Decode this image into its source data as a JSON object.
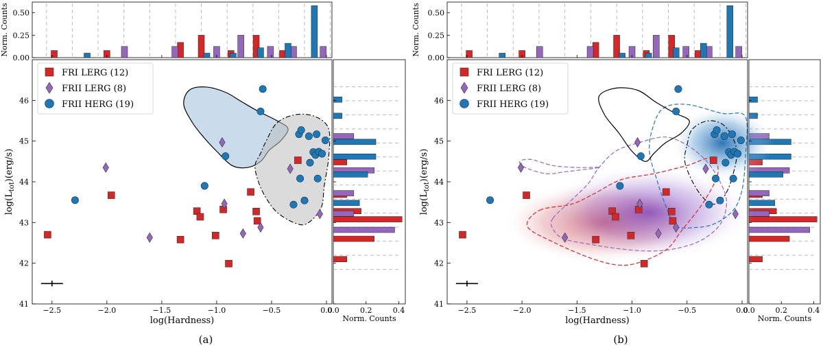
{
  "chart_data": [
    {
      "type": "scatter",
      "caption": "(a)",
      "xlabel": "log(Hardness)",
      "ylabel": "log(L_tot)(erg/s)",
      "ylabel_main": "log(L",
      "ylabel_sub": "tot",
      "ylabel_tail": ")(erg/s)",
      "xlim": [
        -2.68,
        0.05
      ],
      "ylim": [
        41,
        47
      ],
      "xticks": [
        -2.5,
        -2.0,
        -1.5,
        -1.0,
        -0.5,
        0.0
      ],
      "xtick_labels": [
        "−2.5",
        "−2.0",
        "−1.5",
        "−1.0",
        "−0.5",
        "0.0"
      ],
      "yticks": [
        41,
        42,
        43,
        44,
        45,
        46
      ],
      "ytick_labels": [
        "41",
        "42",
        "43",
        "44",
        "45",
        "46"
      ],
      "top_ylabel": "Norm. Counts",
      "top_ylim": [
        0,
        0.62
      ],
      "top_yticks": [
        0.0,
        0.25,
        0.5
      ],
      "top_ytick_labels": [
        "0.00",
        "0.25",
        "0.50"
      ],
      "right_xlabel": "Norm. Counts",
      "right_xlim": [
        0,
        0.44
      ],
      "right_xticks": [
        0.0,
        0.2,
        0.4
      ],
      "right_xtick_labels": [
        "0.0",
        "0.2",
        "0.4"
      ],
      "legend_position": "top-left",
      "error_bar": {
        "x": -2.5,
        "y": 41.5,
        "xerr": 0.1,
        "yerr": 0.07
      },
      "contours": "outline",
      "series": [
        {
          "name": "FRI LERG",
          "label": "FRI LERG (12)",
          "marker": "square",
          "color": "#d62728",
          "x": [
            -2.54,
            -1.96,
            -1.33,
            -1.18,
            -1.15,
            -1.01,
            -0.94,
            -0.89,
            -0.69,
            -0.64,
            -0.63,
            -0.26
          ],
          "y": [
            42.7,
            43.67,
            42.58,
            43.28,
            43.14,
            42.68,
            43.32,
            41.99,
            43.75,
            43.27,
            43.04,
            44.53
          ]
        },
        {
          "name": "FRII LERG",
          "label": "FRII LERG (8)",
          "marker": "diamond",
          "color": "#9467bd",
          "x": [
            -2.01,
            -1.61,
            -0.95,
            -0.93,
            -0.76,
            -0.6,
            -0.33,
            -0.06
          ],
          "y": [
            44.35,
            42.63,
            44.97,
            43.46,
            42.73,
            42.88,
            44.32,
            43.21
          ]
        },
        {
          "name": "FRII HERG",
          "label": "FRII HERG (19)",
          "marker": "circle",
          "color": "#1f77b4",
          "x": [
            -2.29,
            -1.11,
            -0.92,
            -0.6,
            -0.58,
            -0.3,
            -0.25,
            -0.24,
            -0.23,
            -0.2,
            -0.16,
            -0.15,
            -0.12,
            -0.1,
            -0.09,
            -0.08,
            -0.07,
            -0.04,
            -0.01
          ],
          "y": [
            43.55,
            43.9,
            44.63,
            45.73,
            46.28,
            43.44,
            45.17,
            44.08,
            45.27,
            43.54,
            45.12,
            44.47,
            44.73,
            44.66,
            45.17,
            44.08,
            44.74,
            44.69,
            45.02
          ]
        }
      ],
      "top_histogram": [
        {
          "name": "FRI LERG",
          "color": "#d62728",
          "x": [
            -2.48,
            -2.0,
            -1.33,
            -1.14,
            -0.87,
            -0.64,
            -0.4
          ],
          "values": [
            0.08,
            0.08,
            0.17,
            0.25,
            0.08,
            0.25,
            0.08
          ]
        },
        {
          "name": "FRII LERG",
          "color": "#9467bd",
          "x": [
            -1.84,
            -1.38,
            -1.0,
            -0.78,
            -0.51,
            -0.3,
            -0.03
          ],
          "values": [
            0.125,
            0.125,
            0.125,
            0.25,
            0.125,
            0.125,
            0.125
          ]
        },
        {
          "name": "FRII HERG",
          "color": "#1f77b4",
          "x": [
            -2.18,
            -1.09,
            -0.85,
            -0.6,
            -0.35,
            -0.11
          ],
          "values": [
            0.05,
            0.05,
            0.05,
            0.11,
            0.16,
            0.58
          ]
        }
      ],
      "right_histogram": [
        {
          "name": "FRI LERG",
          "color": "#d62728",
          "y": [
            42.1,
            42.6,
            43.08,
            43.28,
            43.68,
            44.48
          ],
          "values": [
            0.083,
            0.25,
            0.42,
            0.17,
            0.083,
            0.083
          ]
        },
        {
          "name": "FRII LERG",
          "color": "#9467bd",
          "y": [
            42.82,
            43.22,
            43.72,
            44.28,
            45.12
          ],
          "values": [
            0.375,
            0.125,
            0.125,
            0.25,
            0.125
          ]
        },
        {
          "name": "FRII HERG",
          "color": "#1f77b4",
          "y": [
            43.48,
            44.18,
            44.62,
            44.98,
            45.62,
            46.02
          ],
          "values": [
            0.16,
            0.21,
            0.26,
            0.26,
            0.053,
            0.053
          ]
        }
      ]
    },
    {
      "type": "scatter",
      "caption": "(b)",
      "xlabel": "log(Hardness)",
      "ylabel": "log(L_tot)(erg/s)",
      "ylabel_main": "log(L",
      "ylabel_sub": "tot",
      "ylabel_tail": ")(erg/s)",
      "xlim": [
        -2.68,
        0.05
      ],
      "ylim": [
        41,
        47
      ],
      "xticks": [
        -2.5,
        -2.0,
        -1.5,
        -1.0,
        -0.5,
        0.0
      ],
      "xtick_labels": [
        "−2.5",
        "−2.0",
        "−1.5",
        "−1.0",
        "−0.5",
        "0.0"
      ],
      "yticks": [
        41,
        42,
        43,
        44,
        45,
        46
      ],
      "ytick_labels": [
        "41",
        "42",
        "43",
        "44",
        "45",
        "46"
      ],
      "top_ylabel": "Norm. Counts",
      "top_ylim": [
        0,
        0.62
      ],
      "top_yticks": [
        0.0,
        0.25,
        0.5
      ],
      "top_ytick_labels": [
        "0.00",
        "0.25",
        "0.50"
      ],
      "right_xlabel": "Norm. Counts",
      "right_xlim": [
        0,
        0.44
      ],
      "right_xticks": [
        0.0,
        0.2,
        0.4
      ],
      "right_xtick_labels": [
        "0.0",
        "0.2",
        "0.4"
      ],
      "legend_position": "top-left",
      "error_bar": {
        "x": -2.5,
        "y": 41.5,
        "xerr": 0.1,
        "yerr": 0.07
      },
      "contours": "density",
      "series": [
        {
          "name": "FRI LERG",
          "label": "FRI LERG (12)",
          "marker": "square",
          "color": "#d62728",
          "x": [
            -2.54,
            -1.96,
            -1.33,
            -1.18,
            -1.15,
            -1.01,
            -0.94,
            -0.89,
            -0.69,
            -0.64,
            -0.63,
            -0.26
          ],
          "y": [
            42.7,
            43.67,
            42.58,
            43.28,
            43.14,
            42.68,
            43.32,
            41.99,
            43.75,
            43.27,
            43.04,
            44.53
          ]
        },
        {
          "name": "FRII LERG",
          "label": "FRII LERG (8)",
          "marker": "diamond",
          "color": "#9467bd",
          "x": [
            -2.01,
            -1.61,
            -0.95,
            -0.93,
            -0.76,
            -0.6,
            -0.33,
            -0.06
          ],
          "y": [
            44.35,
            42.63,
            44.97,
            43.46,
            42.73,
            42.88,
            44.32,
            43.21
          ]
        },
        {
          "name": "FRII HERG",
          "label": "FRII HERG (19)",
          "marker": "circle",
          "color": "#1f77b4",
          "x": [
            -2.29,
            -1.11,
            -0.92,
            -0.6,
            -0.58,
            -0.3,
            -0.25,
            -0.24,
            -0.23,
            -0.2,
            -0.16,
            -0.15,
            -0.12,
            -0.1,
            -0.09,
            -0.08,
            -0.07,
            -0.04,
            -0.01
          ],
          "y": [
            43.55,
            43.9,
            44.63,
            45.73,
            46.28,
            43.44,
            45.17,
            44.08,
            45.27,
            43.54,
            45.12,
            44.47,
            44.73,
            44.66,
            45.17,
            44.08,
            44.74,
            44.69,
            45.02
          ]
        }
      ],
      "top_histogram": [
        {
          "name": "FRI LERG",
          "color": "#d62728",
          "x": [
            -2.48,
            -2.0,
            -1.33,
            -1.14,
            -0.87,
            -0.64,
            -0.4
          ],
          "values": [
            0.08,
            0.08,
            0.17,
            0.25,
            0.08,
            0.25,
            0.08
          ]
        },
        {
          "name": "FRII LERG",
          "color": "#9467bd",
          "x": [
            -1.84,
            -1.38,
            -1.0,
            -0.78,
            -0.51,
            -0.3,
            -0.03
          ],
          "values": [
            0.125,
            0.125,
            0.125,
            0.25,
            0.125,
            0.125,
            0.125
          ]
        },
        {
          "name": "FRII HERG",
          "color": "#1f77b4",
          "x": [
            -2.18,
            -1.09,
            -0.85,
            -0.6,
            -0.35,
            -0.11
          ],
          "values": [
            0.05,
            0.05,
            0.05,
            0.11,
            0.16,
            0.58
          ]
        }
      ],
      "right_histogram": [
        {
          "name": "FRI LERG",
          "color": "#d62728",
          "y": [
            42.1,
            42.6,
            43.08,
            43.28,
            43.68,
            44.48
          ],
          "values": [
            0.083,
            0.25,
            0.42,
            0.17,
            0.083,
            0.083
          ]
        },
        {
          "name": "FRII LERG",
          "color": "#9467bd",
          "y": [
            42.82,
            43.22,
            43.72,
            44.28,
            45.12
          ],
          "values": [
            0.375,
            0.125,
            0.125,
            0.25,
            0.125
          ]
        },
        {
          "name": "FRII HERG",
          "color": "#1f77b4",
          "y": [
            43.48,
            44.18,
            44.62,
            44.98,
            45.62,
            46.02
          ],
          "values": [
            0.16,
            0.21,
            0.26,
            0.26,
            0.053,
            0.053
          ]
        }
      ]
    }
  ]
}
